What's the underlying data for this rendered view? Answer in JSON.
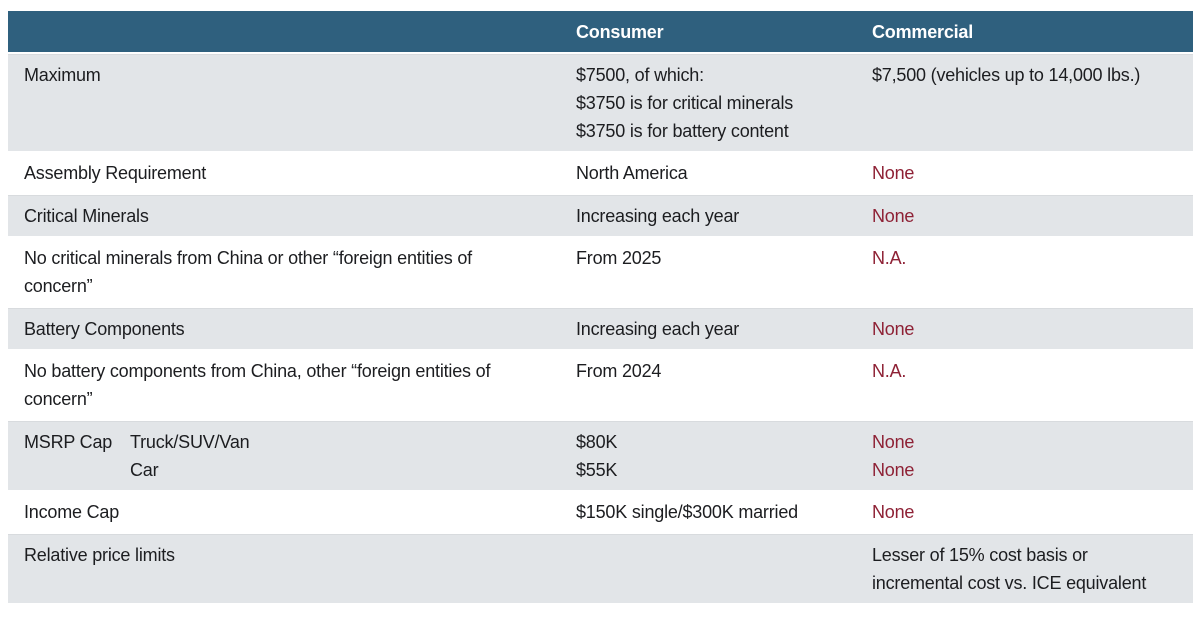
{
  "colors": {
    "header_bg": "#2f607e",
    "row_alt_bg": "#e2e5e8",
    "accent_text": "#8e2135",
    "body_text": "#1c1d20"
  },
  "table": {
    "columns": [
      {
        "label": ""
      },
      {
        "label": "Consumer"
      },
      {
        "label": "Commercial"
      }
    ],
    "rows": [
      {
        "label": "Maximum",
        "consumer": [
          "$7500, of which:",
          "$3750 is for critical minerals",
          "$3750 is for battery content"
        ],
        "consumer_accent": false,
        "commercial": [
          "$7,500 (vehicles up to 14,000 lbs.)"
        ],
        "commercial_accent": false
      },
      {
        "label": "Assembly Requirement",
        "consumer": [
          "North America"
        ],
        "consumer_accent": false,
        "commercial": [
          "None"
        ],
        "commercial_accent": true
      },
      {
        "label": "Critical Minerals",
        "consumer": [
          "Increasing each year"
        ],
        "consumer_accent": false,
        "commercial": [
          "None"
        ],
        "commercial_accent": true
      },
      {
        "label": "No critical minerals from China or other “foreign entities of concern”",
        "consumer": [
          "From 2025"
        ],
        "consumer_accent": false,
        "commercial": [
          "N.A."
        ],
        "commercial_accent": true
      },
      {
        "label": "Battery Components",
        "consumer": [
          "Increasing each year"
        ],
        "consumer_accent": false,
        "commercial": [
          "None"
        ],
        "commercial_accent": true
      },
      {
        "label": "No battery components from China, other “foreign entities of concern”",
        "consumer": [
          "From 2024"
        ],
        "consumer_accent": false,
        "commercial": [
          "N.A."
        ],
        "commercial_accent": true
      },
      {
        "label": "MSRP Cap",
        "label_sub": [
          "Truck/SUV/Van",
          "Car"
        ],
        "consumer": [
          "$80K",
          "$55K"
        ],
        "consumer_accent": false,
        "commercial": [
          "None",
          "None"
        ],
        "commercial_accent": true
      },
      {
        "label": "Income Cap",
        "consumer": [
          "$150K single/$300K married"
        ],
        "consumer_accent": false,
        "commercial": [
          "None"
        ],
        "commercial_accent": true
      },
      {
        "label": "Relative price limits",
        "consumer": [],
        "consumer_accent": false,
        "commercial": [
          "Lesser of 15% cost basis or",
          "incremental cost vs. ICE equivalent"
        ],
        "commercial_accent": false
      }
    ]
  }
}
